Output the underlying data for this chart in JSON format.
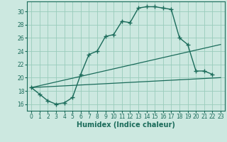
{
  "xlabel": "Humidex (Indice chaleur)",
  "bg_color": "#cce8e0",
  "grid_color": "#99ccbb",
  "line_color": "#1a6b5a",
  "xlim": [
    -0.5,
    23.5
  ],
  "ylim": [
    15.0,
    31.5
  ],
  "xticks": [
    0,
    1,
    2,
    3,
    4,
    5,
    6,
    7,
    8,
    9,
    10,
    11,
    12,
    13,
    14,
    15,
    16,
    17,
    18,
    19,
    20,
    21,
    22,
    23
  ],
  "yticks": [
    16,
    18,
    20,
    22,
    24,
    26,
    28,
    30
  ],
  "series": [
    [
      0,
      18.5
    ],
    [
      1,
      17.5
    ],
    [
      2,
      16.5
    ],
    [
      3,
      16.0
    ],
    [
      4,
      16.2
    ],
    [
      5,
      17.0
    ],
    [
      6,
      20.5
    ],
    [
      7,
      23.5
    ],
    [
      8,
      24.0
    ],
    [
      9,
      26.2
    ],
    [
      10,
      26.5
    ],
    [
      11,
      28.5
    ],
    [
      12,
      28.3
    ],
    [
      13,
      30.5
    ],
    [
      14,
      30.7
    ],
    [
      15,
      30.7
    ],
    [
      16,
      30.5
    ],
    [
      17,
      30.3
    ],
    [
      18,
      26.0
    ],
    [
      19,
      25.0
    ],
    [
      20,
      21.0
    ],
    [
      21,
      21.0
    ],
    [
      22,
      20.5
    ]
  ],
  "line2": [
    [
      0,
      18.5
    ],
    [
      23,
      25.0
    ]
  ],
  "line3": [
    [
      0,
      18.5
    ],
    [
      23,
      20.0
    ]
  ]
}
